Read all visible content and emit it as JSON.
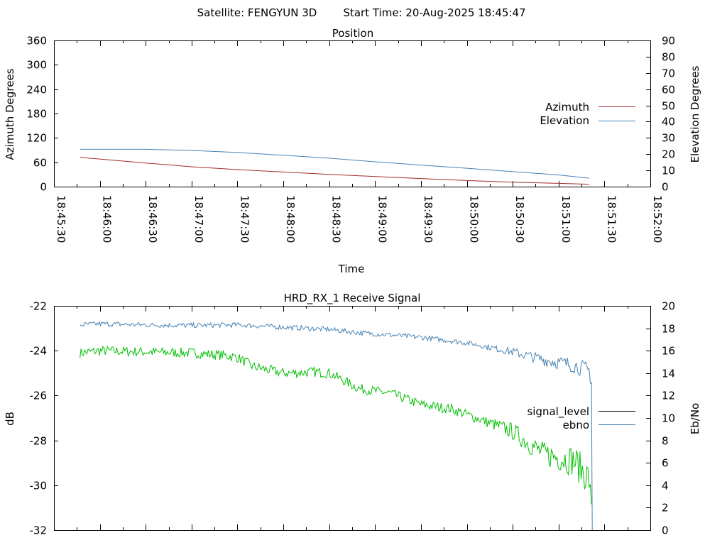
{
  "header": {
    "satellite": "Satellite: FENGYUN 3D",
    "start_time": "Start Time: 20-Aug-2025 18:45:47"
  },
  "chart_data": [
    {
      "type": "line",
      "title": "Position",
      "xlabel": "Time",
      "ylabel": "Azimuth Degrees",
      "y2label": "Elevation Degrees",
      "x_ticks": [
        "18:45:30",
        "18:46:00",
        "18:46:30",
        "18:47:00",
        "18:47:30",
        "18:48:00",
        "18:48:30",
        "18:49:00",
        "18:49:30",
        "18:50:00",
        "18:50:30",
        "18:51:00",
        "18:51:30",
        "18:52:00"
      ],
      "xlim": [
        0,
        390
      ],
      "x_unit": "seconds since 18:45:30",
      "ylim": [
        0,
        360
      ],
      "y_ticks": [
        0,
        60,
        120,
        180,
        240,
        300,
        360
      ],
      "y2lim": [
        0,
        90
      ],
      "y2_ticks": [
        0,
        10,
        20,
        30,
        40,
        50,
        60,
        70,
        80,
        90
      ],
      "legend": "right",
      "series": [
        {
          "name": "Azimuth",
          "axis": "y",
          "color": "#a52a2a",
          "x": [
            17,
            30,
            60,
            90,
            120,
            150,
            180,
            210,
            240,
            270,
            300,
            330,
            350
          ],
          "values": [
            72,
            68,
            58,
            49,
            42,
            36,
            30,
            25,
            20,
            15,
            11,
            8,
            6
          ]
        },
        {
          "name": "Elevation",
          "axis": "y2",
          "color": "#4682b4",
          "x": [
            17,
            30,
            60,
            90,
            120,
            150,
            180,
            210,
            240,
            270,
            300,
            330,
            350
          ],
          "values": [
            23,
            23,
            23,
            22.3,
            21,
            19.3,
            17.5,
            15.3,
            13.3,
            11.3,
            9.2,
            7.2,
            5.2
          ]
        }
      ]
    },
    {
      "type": "line",
      "title": "HRD_RX_1 Receive Signal",
      "ylabel": "dB",
      "y2label": "Eb/No",
      "ylim": [
        -32,
        -22
      ],
      "y_ticks": [
        -22,
        -24,
        -26,
        -28,
        -30,
        -32
      ],
      "y2lim": [
        0,
        20
      ],
      "y2_ticks": [
        0,
        2,
        4,
        6,
        8,
        10,
        12,
        14,
        16,
        18,
        20
      ],
      "xlim": [
        0,
        390
      ],
      "legend": "right",
      "series": [
        {
          "name": "signal_level",
          "axis": "y",
          "color": "#00c000",
          "x": [
            17,
            30,
            60,
            90,
            110,
            120,
            130,
            150,
            170,
            180,
            200,
            220,
            240,
            260,
            280,
            300,
            310,
            320,
            340,
            350,
            352
          ],
          "values": [
            -24.1,
            -24.0,
            -24.05,
            -24.1,
            -24.2,
            -24.3,
            -24.7,
            -25.0,
            -24.95,
            -25.0,
            -25.7,
            -25.9,
            -26.4,
            -26.6,
            -27.1,
            -27.6,
            -28.1,
            -28.6,
            -28.9,
            -29.7,
            -31.9
          ]
        },
        {
          "name": "ebno",
          "axis": "y2",
          "color": "#4682b4",
          "x": [
            17,
            30,
            60,
            90,
            120,
            150,
            180,
            200,
            240,
            270,
            300,
            320,
            340,
            350,
            352
          ],
          "values": [
            18.3,
            18.4,
            18.3,
            18.25,
            18.3,
            18.1,
            17.9,
            17.6,
            17.2,
            16.7,
            15.9,
            15.2,
            14.7,
            14.2,
            13.1
          ]
        }
      ]
    }
  ]
}
